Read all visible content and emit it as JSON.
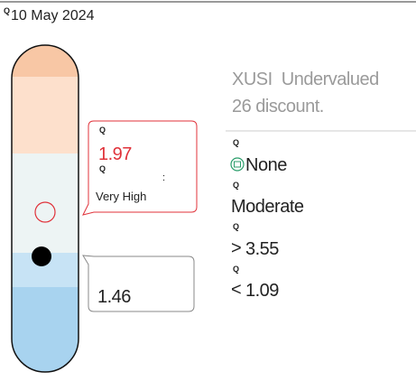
{
  "header": {
    "icon": "Q",
    "date": "10 May 2024"
  },
  "summary": {
    "line1": "XUSI  Undervalued",
    "line2": "26 discount."
  },
  "callout_high": {
    "icon": "Q",
    "value": "1.97",
    "icon2": "Q",
    "colon": ":",
    "label": "Very High"
  },
  "callout_low": {
    "value": "1.46"
  },
  "details": [
    {
      "icon": "Q",
      "text": "None"
    },
    {
      "icon": "Q",
      "text": "Moderate"
    },
    {
      "icon": "Q",
      "symbol": ">",
      "text": "3.55"
    },
    {
      "icon": "Q",
      "symbol": "<",
      "text": "1.09"
    }
  ]
}
